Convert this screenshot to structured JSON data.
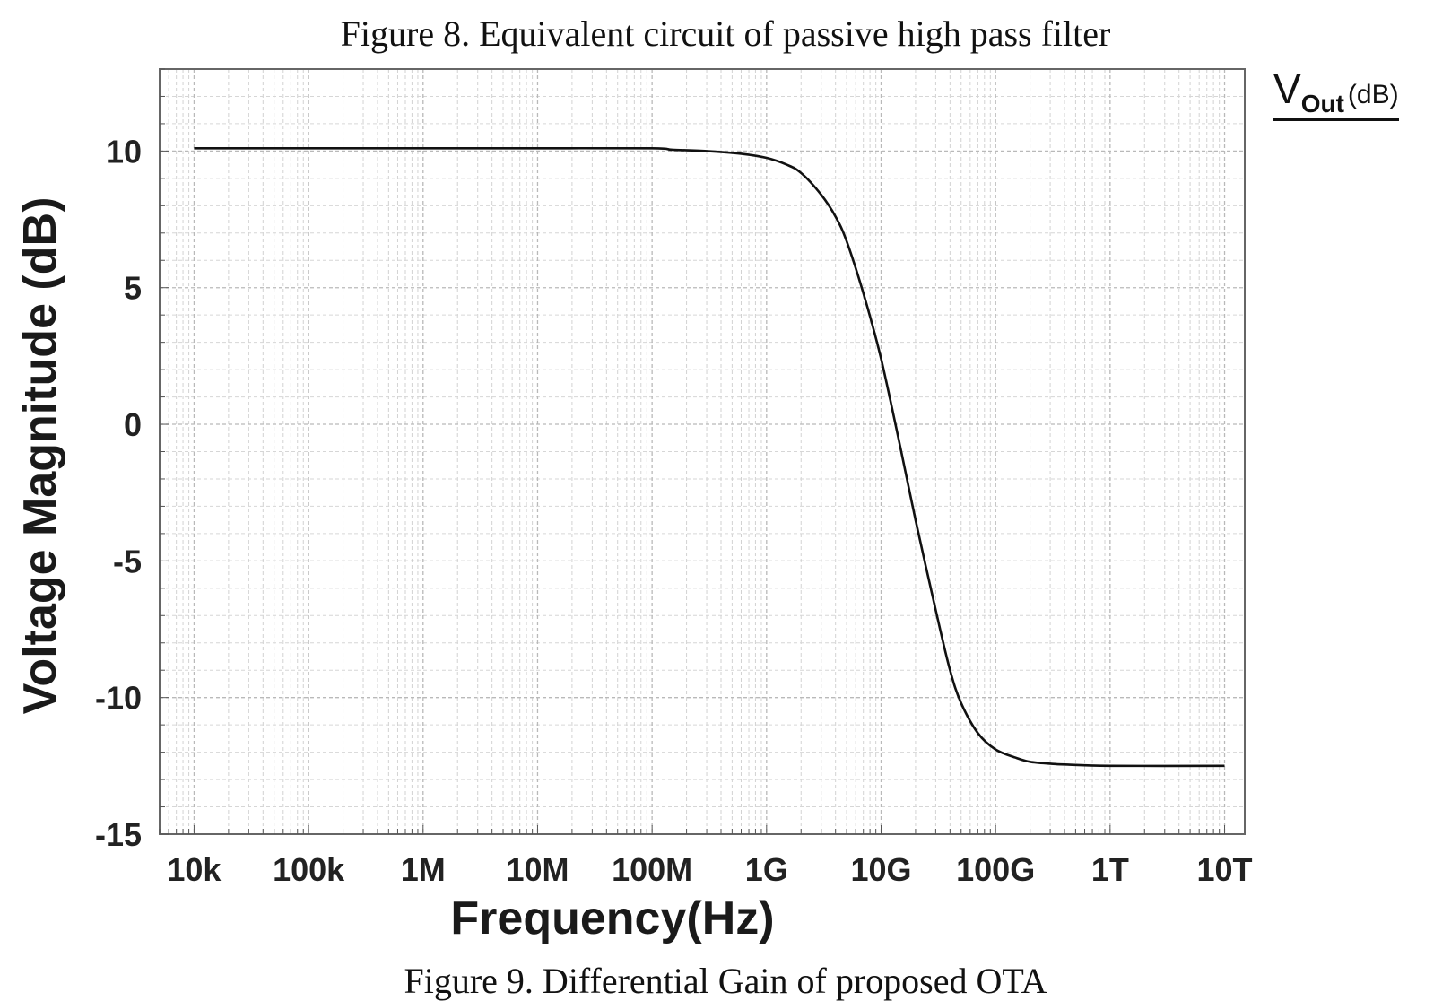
{
  "captions": {
    "top": "Figure 8. Equivalent circuit of passive high pass filter",
    "bottom": "Figure 9. Differential Gain of proposed OTA"
  },
  "legend": {
    "main": "V",
    "subscript": "Out",
    "unit": "(dB)"
  },
  "chart_data": {
    "type": "line",
    "title": "",
    "xlabel": "Frequency(Hz)",
    "ylabel": "Voltage Magnitude (dB)",
    "xscale": "log",
    "xlim": [
      5000,
      15000000000000
    ],
    "ylim": [
      -15,
      13
    ],
    "grid": true,
    "x_ticks": [
      {
        "value": 10000,
        "label": "10k"
      },
      {
        "value": 100000,
        "label": "100k"
      },
      {
        "value": 1000000,
        "label": "1M"
      },
      {
        "value": 10000000,
        "label": "10M"
      },
      {
        "value": 100000000,
        "label": "100M"
      },
      {
        "value": 1000000000,
        "label": "1G"
      },
      {
        "value": 10000000000,
        "label": "10G"
      },
      {
        "value": 100000000000,
        "label": "100G"
      },
      {
        "value": 1000000000000,
        "label": "1T"
      },
      {
        "value": 10000000000000,
        "label": "10T"
      }
    ],
    "y_ticks": [
      {
        "value": 10,
        "label": "10"
      },
      {
        "value": 5,
        "label": "5"
      },
      {
        "value": 0,
        "label": "0"
      },
      {
        "value": -5,
        "label": "-5"
      },
      {
        "value": -10,
        "label": "-10"
      },
      {
        "value": -15,
        "label": "-15"
      }
    ],
    "series": [
      {
        "name": "Vout (dB)",
        "color": "#111111",
        "x": [
          10000,
          100000,
          1000000,
          10000000,
          100000000,
          150000000,
          300000000,
          600000000,
          1000000000,
          1500000000,
          2000000000,
          3000000000,
          4000000000,
          5000000000,
          7000000000,
          10000000000,
          15000000000,
          20000000000,
          30000000000,
          40000000000,
          50000000000,
          70000000000,
          100000000000,
          150000000000,
          200000000000,
          300000000000,
          400000000000,
          1000000000000,
          10000000000000
        ],
        "y": [
          10.1,
          10.1,
          10.1,
          10.1,
          10.1,
          10.05,
          10.0,
          9.9,
          9.75,
          9.5,
          9.2,
          8.4,
          7.6,
          6.7,
          4.8,
          2.4,
          -1.0,
          -3.5,
          -6.8,
          -9.0,
          -10.2,
          -11.3,
          -11.9,
          -12.2,
          -12.35,
          -12.42,
          -12.45,
          -12.5,
          -12.5
        ]
      }
    ]
  }
}
